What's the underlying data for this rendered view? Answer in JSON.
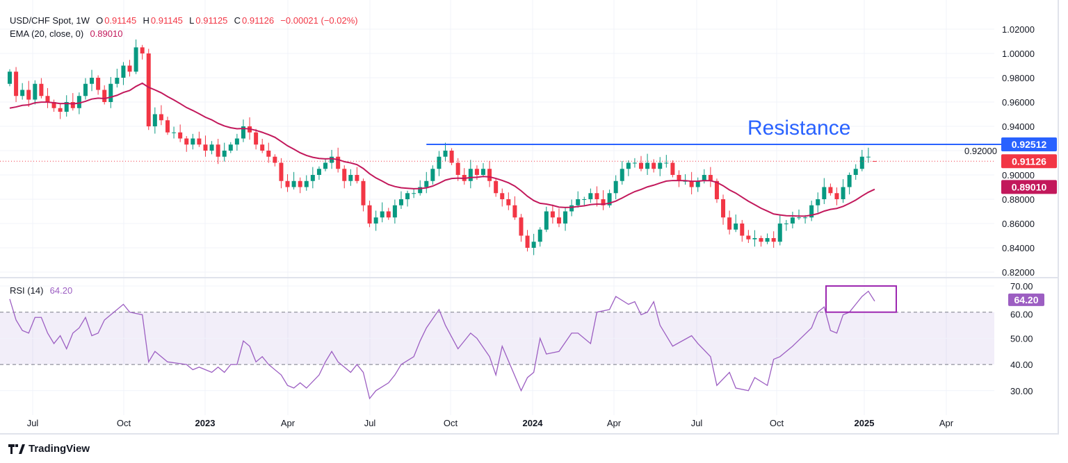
{
  "header": {
    "symbol": "USD/CHF Spot, 1W",
    "o_label": "O",
    "open": "0.91145",
    "h_label": "H",
    "high": "0.91145",
    "l_label": "L",
    "low": "0.91125",
    "c_label": "C",
    "close": "0.91126",
    "change": "−0.00021 (−0.02%)"
  },
  "ema_legend": {
    "label": "EMA (20, close, 0)",
    "value": "0.89010"
  },
  "rsi_legend": {
    "label": "RSI (14)",
    "value": "64.20"
  },
  "annotation": {
    "text": "Resistance",
    "level": 0.92512,
    "level_label": "0.92512"
  },
  "price_tags": {
    "last": "0.91126",
    "ema": "0.89010",
    "rsi": "64.20"
  },
  "colors": {
    "up": "#089981",
    "down": "#f23645",
    "ema": "#c2185b",
    "rsi": "#9c5ec2",
    "resistance": "#2962ff"
  },
  "branding": "TradingView",
  "chart_data": [
    {
      "type": "candlestick",
      "title": "USD/CHF Spot, 1W",
      "period": "weekly, Jun 2022 – Jan 2025",
      "first_open": 0.975,
      "closes": [
        0.985,
        0.965,
        0.97,
        0.962,
        0.975,
        0.965,
        0.96,
        0.955,
        0.952,
        0.96,
        0.955,
        0.965,
        0.975,
        0.98,
        0.97,
        0.96,
        0.975,
        0.98,
        0.99,
        0.985,
        1.005,
        1.0,
        0.94,
        0.95,
        0.945,
        0.935,
        0.935,
        0.93,
        0.925,
        0.93,
        0.925,
        0.92,
        0.925,
        0.915,
        0.92,
        0.925,
        0.93,
        0.94,
        0.935,
        0.925,
        0.92,
        0.915,
        0.91,
        0.895,
        0.89,
        0.895,
        0.89,
        0.895,
        0.9,
        0.905,
        0.91,
        0.915,
        0.905,
        0.895,
        0.9,
        0.895,
        0.875,
        0.86,
        0.865,
        0.87,
        0.865,
        0.875,
        0.88,
        0.885,
        0.885,
        0.89,
        0.895,
        0.905,
        0.915,
        0.92,
        0.91,
        0.9,
        0.895,
        0.905,
        0.9,
        0.905,
        0.895,
        0.885,
        0.88,
        0.875,
        0.865,
        0.85,
        0.84,
        0.845,
        0.855,
        0.87,
        0.865,
        0.86,
        0.87,
        0.875,
        0.88,
        0.88,
        0.885,
        0.88,
        0.875,
        0.885,
        0.895,
        0.905,
        0.91,
        0.91,
        0.905,
        0.91,
        0.905,
        0.91,
        0.91,
        0.9,
        0.895,
        0.895,
        0.89,
        0.895,
        0.9,
        0.895,
        0.88,
        0.865,
        0.855,
        0.86,
        0.85,
        0.847,
        0.848,
        0.845,
        0.848,
        0.845,
        0.86,
        0.86,
        0.865,
        0.865,
        0.865,
        0.875,
        0.88,
        0.89,
        0.885,
        0.88,
        0.89,
        0.9,
        0.905,
        0.915,
        0.915,
        0.91126
      ],
      "last_candle": {
        "open": 0.91145,
        "high": 0.91145,
        "low": 0.91125,
        "close": 0.91126
      },
      "ema": {
        "period": 20,
        "last": 0.8901
      },
      "y_ticks": [
        "1.02000",
        "1.00000",
        "0.98000",
        "0.96000",
        "0.94000",
        "0.92000",
        "0.90000",
        "0.88000",
        "0.86000",
        "0.84000",
        "0.82000"
      ],
      "ylim": [
        0.82,
        1.02
      ],
      "x_ticks": [
        {
          "label": "Jul",
          "bold": false
        },
        {
          "label": "Oct",
          "bold": false
        },
        {
          "label": "2023",
          "bold": true
        },
        {
          "label": "Apr",
          "bold": false
        },
        {
          "label": "Jul",
          "bold": false
        },
        {
          "label": "Oct",
          "bold": false
        },
        {
          "label": "2024",
          "bold": true
        },
        {
          "label": "Apr",
          "bold": false
        },
        {
          "label": "Jul",
          "bold": false
        },
        {
          "label": "Oct",
          "bold": false
        },
        {
          "label": "2025",
          "bold": true
        },
        {
          "label": "Apr",
          "bold": false
        }
      ],
      "horizontal_line": 0.92512
    },
    {
      "type": "line",
      "title": "RSI (14)",
      "points": [
        [
          0,
          65
        ],
        [
          1,
          57
        ],
        [
          2,
          53
        ],
        [
          3,
          52
        ],
        [
          4,
          58
        ],
        [
          5,
          58
        ],
        [
          6,
          52
        ],
        [
          7,
          48
        ],
        [
          8,
          51
        ],
        [
          9,
          46
        ],
        [
          10,
          52
        ],
        [
          11,
          54
        ],
        [
          12,
          58
        ],
        [
          13,
          51
        ],
        [
          14,
          52
        ],
        [
          15,
          57
        ],
        [
          16,
          59
        ],
        [
          18,
          63
        ],
        [
          19,
          60
        ],
        [
          21,
          59
        ],
        [
          22,
          41
        ],
        [
          23,
          45
        ],
        [
          25,
          41
        ],
        [
          28,
          40
        ],
        [
          29,
          38
        ],
        [
          30,
          39
        ],
        [
          32,
          37
        ],
        [
          33,
          39
        ],
        [
          34,
          37
        ],
        [
          35,
          40
        ],
        [
          36,
          40
        ],
        [
          37,
          49
        ],
        [
          38,
          47
        ],
        [
          39,
          41
        ],
        [
          40,
          43
        ],
        [
          41,
          40
        ],
        [
          43,
          36
        ],
        [
          44,
          32
        ],
        [
          45,
          31
        ],
        [
          46,
          33
        ],
        [
          47,
          31
        ],
        [
          49,
          36
        ],
        [
          50,
          41
        ],
        [
          51,
          45
        ],
        [
          52,
          41
        ],
        [
          54,
          37
        ],
        [
          55,
          40
        ],
        [
          56,
          37
        ],
        [
          57,
          27
        ],
        [
          58,
          30
        ],
        [
          60,
          33
        ],
        [
          61,
          36
        ],
        [
          62,
          40
        ],
        [
          64,
          43
        ],
        [
          65,
          49
        ],
        [
          66,
          54
        ],
        [
          68,
          61
        ],
        [
          69,
          55
        ],
        [
          71,
          46
        ],
        [
          73,
          52
        ],
        [
          74,
          50
        ],
        [
          76,
          43
        ],
        [
          77,
          36
        ],
        [
          78,
          47
        ],
        [
          81,
          30
        ],
        [
          82,
          35
        ],
        [
          83,
          37
        ],
        [
          84,
          50
        ],
        [
          85,
          44
        ],
        [
          87,
          45
        ],
        [
          89,
          52
        ],
        [
          90,
          52
        ],
        [
          92,
          48
        ],
        [
          93,
          60
        ],
        [
          95,
          61
        ],
        [
          96,
          66
        ],
        [
          98,
          63
        ],
        [
          99,
          64
        ],
        [
          100,
          59
        ],
        [
          101,
          60
        ],
        [
          102,
          64
        ],
        [
          103,
          55
        ],
        [
          105,
          47
        ],
        [
          108,
          51
        ],
        [
          109,
          48
        ],
        [
          111,
          43
        ],
        [
          112,
          32
        ],
        [
          114,
          37
        ],
        [
          115,
          31
        ],
        [
          117,
          30
        ],
        [
          118,
          35
        ],
        [
          120,
          32
        ],
        [
          121,
          42
        ],
        [
          122,
          43
        ],
        [
          124,
          47
        ],
        [
          127,
          54
        ],
        [
          128,
          60
        ],
        [
          129,
          62
        ],
        [
          130,
          53
        ],
        [
          131,
          52
        ],
        [
          132,
          59
        ],
        [
          133,
          60
        ],
        [
          134,
          63
        ],
        [
          135,
          66
        ],
        [
          136,
          68
        ],
        [
          137,
          64.2
        ]
      ],
      "last": 64.2,
      "y_ticks": [
        "70.00",
        "60.00",
        "50.00",
        "40.00",
        "30.00"
      ],
      "ylim": [
        25,
        72
      ],
      "band": [
        40,
        60
      ],
      "highlight_box": {
        "from_week": 130,
        "to_week": 141,
        "from": 60,
        "to": 70
      }
    }
  ]
}
